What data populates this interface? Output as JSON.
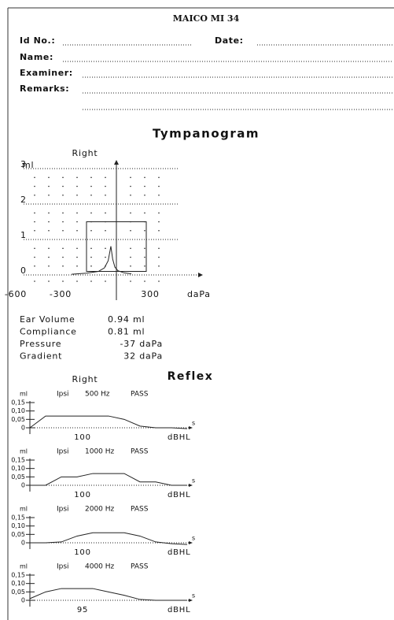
{
  "header": {
    "title": "MAICO MI 34"
  },
  "fields": [
    {
      "label": "Id No.:"
    },
    {
      "label": "Date:"
    },
    {
      "label": "Name:"
    },
    {
      "label": "Examiner:"
    },
    {
      "label": "Remarks:"
    }
  ],
  "tympanogram": {
    "title": "Tympanogram",
    "ear": "Right",
    "y_unit": "ml",
    "x_unit": "daPa",
    "xlim": [
      -600,
      400
    ],
    "ylim": [
      0,
      3
    ],
    "yticks": [
      0,
      1,
      2,
      3
    ],
    "xticks": [
      -600,
      -300,
      300
    ],
    "box": {
      "x": [
        -200,
        200
      ],
      "y": [
        0.1,
        1.5
      ]
    },
    "curve": {
      "x": [
        -300,
        -200,
        -120,
        -80,
        -55,
        -37,
        -25,
        -10,
        10,
        50,
        100
      ],
      "values": [
        0.02,
        0.05,
        0.1,
        0.2,
        0.4,
        0.81,
        0.45,
        0.22,
        0.12,
        0.06,
        0.03
      ]
    },
    "results": [
      {
        "label": "Ear Volume",
        "value": "0.94 ml"
      },
      {
        "label": "Compliance",
        "value": "0.81 ml"
      },
      {
        "label": "Pressure",
        "value": "-37 daPa"
      },
      {
        "label": "Gradient",
        "value": "32 daPa"
      }
    ]
  },
  "reflex": {
    "title": "Reflex",
    "ear": "Right",
    "ylim": [
      0,
      0.15
    ],
    "yticks": [
      0,
      {
        "value": 0.05,
        "label": "0,05"
      },
      {
        "value": 0.1,
        "label": "0,10"
      },
      {
        "value": 0.15,
        "label": "0,15"
      }
    ],
    "tests": [
      {
        "unit": "ml",
        "mode": "Ipsi",
        "frequency": "500 Hz",
        "result": "PASS",
        "level": "100",
        "level_unit": "dBHL",
        "time_unit": "s",
        "values": [
          0,
          0.07,
          0.07,
          0.07,
          0.07,
          0.07,
          0.05,
          0.01,
          0,
          0,
          -0.005
        ]
      },
      {
        "unit": "ml",
        "mode": "Ipsi",
        "frequency": "1000 Hz",
        "result": "PASS",
        "level": "100",
        "level_unit": "dBHL",
        "time_unit": "s",
        "values": [
          0,
          0,
          0.05,
          0.05,
          0.07,
          0.07,
          0.07,
          0.02,
          0.02,
          0,
          0
        ]
      },
      {
        "unit": "ml",
        "mode": "Ipsi",
        "frequency": "2000 Hz",
        "result": "PASS",
        "level": "100",
        "level_unit": "dBHL",
        "time_unit": "s",
        "values": [
          0,
          0,
          0.005,
          0.04,
          0.06,
          0.06,
          0.06,
          0.04,
          0.005,
          -0.005,
          -0.01
        ]
      },
      {
        "unit": "ml",
        "mode": "Ipsi",
        "frequency": "4000 Hz",
        "result": "PASS",
        "level": "95",
        "level_unit": "dBHL",
        "time_unit": "s",
        "values": [
          0.01,
          0.05,
          0.07,
          0.07,
          0.07,
          0.05,
          0.03,
          0.005,
          0,
          0,
          0
        ]
      }
    ]
  }
}
